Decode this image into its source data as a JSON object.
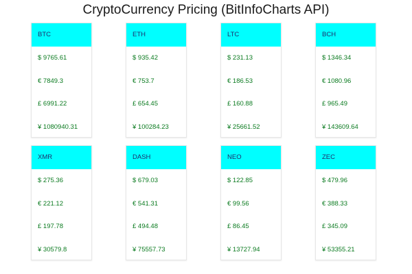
{
  "page": {
    "title": "CryptoCurrency Pricing (BitInfoCharts API)"
  },
  "colors": {
    "header_bg": "#00ffff",
    "price_text": "#0a7a1f",
    "symbol_text": "#1f2d6b"
  },
  "cards": [
    {
      "symbol": "BTC",
      "prices": [
        "$ 9765.61",
        "€ 7849.3",
        "£ 6991.22",
        "¥ 1080940.31"
      ]
    },
    {
      "symbol": "ETH",
      "prices": [
        "$ 935.42",
        "€ 753.7",
        "£ 654.45",
        "¥ 100284.23"
      ]
    },
    {
      "symbol": "LTC",
      "prices": [
        "$ 231.13",
        "€ 186.53",
        "£ 160.88",
        "¥ 25661.52"
      ]
    },
    {
      "symbol": "BCH",
      "prices": [
        "$ 1346.34",
        "€ 1080.96",
        "£ 965.49",
        "¥ 143609.64"
      ]
    },
    {
      "symbol": "XMR",
      "prices": [
        "$ 275.36",
        "€ 221.12",
        "£ 197.78",
        "¥ 30579.8"
      ]
    },
    {
      "symbol": "DASH",
      "prices": [
        "$ 679.03",
        "€ 541.31",
        "£ 494.48",
        "¥ 75557.73"
      ]
    },
    {
      "symbol": "NEO",
      "prices": [
        "$ 122.85",
        "€ 99.56",
        "£ 86.45",
        "¥ 13727.94"
      ]
    },
    {
      "symbol": "ZEC",
      "prices": [
        "$ 479.96",
        "€ 388.33",
        "£ 345.09",
        "¥ 53355.21"
      ]
    }
  ]
}
